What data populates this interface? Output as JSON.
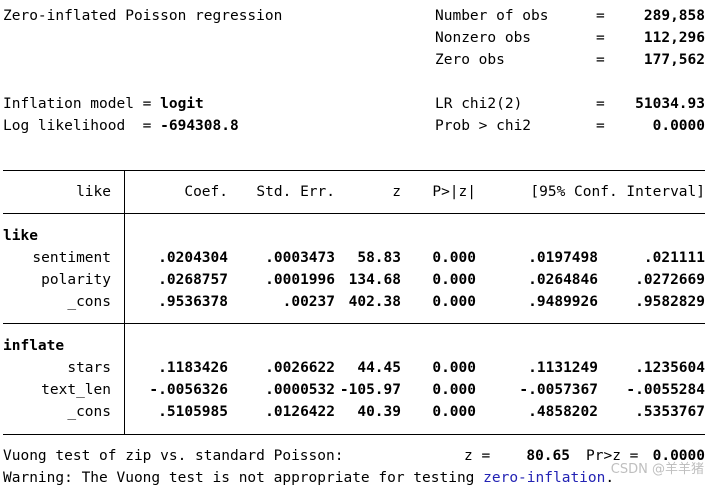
{
  "header": {
    "title": "Zero-inflated Poisson regression",
    "stats": [
      {
        "label": "Number of obs",
        "eq": "=",
        "value": "289,858"
      },
      {
        "label": "Nonzero obs",
        "eq": "=",
        "value": "112,296"
      },
      {
        "label": "Zero obs",
        "eq": "=",
        "value": "177,562"
      },
      {
        "label": "LR chi2(2)",
        "eq": "=",
        "value": "51034.93"
      },
      {
        "label": "Prob > chi2",
        "eq": "=",
        "value": "0.0000"
      }
    ],
    "inflation_label": "Inflation model = ",
    "inflation_value": "logit",
    "loglik_label": "Log likelihood  = ",
    "loglik_value": "-694308.8"
  },
  "table": {
    "columns": [
      "like",
      "Coef.",
      "Std. Err.",
      "z",
      "P>|z|",
      "[95% Conf. Interval]"
    ],
    "groups": [
      {
        "name": "like",
        "rows": [
          {
            "var": "sentiment",
            "coef": ".0204304",
            "se": ".0003473",
            "z": "58.83",
            "p": "0.000",
            "lo": ".0197498",
            "hi": ".021111"
          },
          {
            "var": "polarity",
            "coef": ".0268757",
            "se": ".0001996",
            "z": "134.68",
            "p": "0.000",
            "lo": ".0264846",
            "hi": ".0272669"
          },
          {
            "var": "_cons",
            "coef": ".9536378",
            "se": ".00237",
            "z": "402.38",
            "p": "0.000",
            "lo": ".9489926",
            "hi": ".9582829"
          }
        ]
      },
      {
        "name": "inflate",
        "rows": [
          {
            "var": "stars",
            "coef": ".1183426",
            "se": ".0026622",
            "z": "44.45",
            "p": "0.000",
            "lo": ".1131249",
            "hi": ".1235604"
          },
          {
            "var": "text_len",
            "coef": "-.0056326",
            "se": ".0000532",
            "z": "-105.97",
            "p": "0.000",
            "lo": "-.0057367",
            "hi": "-.0055284"
          },
          {
            "var": "_cons",
            "coef": ".5105985",
            "se": ".0126422",
            "z": "40.39",
            "p": "0.000",
            "lo": ".4858202",
            "hi": ".5353767"
          }
        ]
      }
    ]
  },
  "footer": {
    "vuong_label": "Vuong test of zip vs. standard Poisson:",
    "vuong_z_label": "z =",
    "vuong_z_value": "80.65",
    "vuong_p_label": "Pr>z =",
    "vuong_p_value": "0.0000",
    "warning_prefix": "Warning: The Vuong test is not appropriate for testing ",
    "warning_link": "zero-inflation",
    "warning_suffix": "."
  },
  "watermark": "CSDN @羊羊猪",
  "colors": {
    "link": "#2323b4",
    "watermark": "#bfbfbf"
  }
}
